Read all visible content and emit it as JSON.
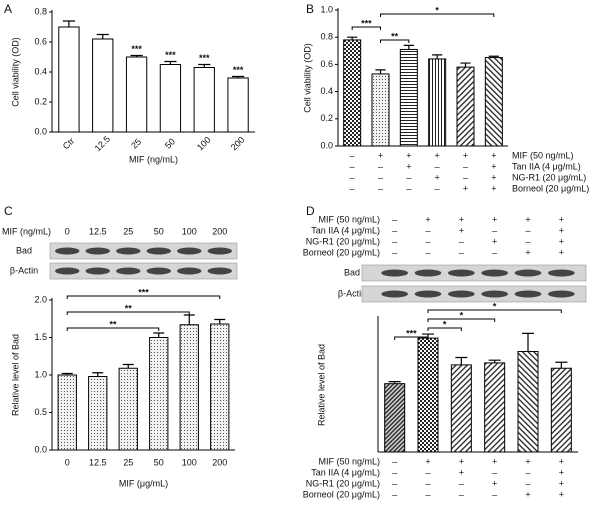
{
  "chart_data": [
    {
      "type": "bar",
      "panel": "A",
      "ylabel": "Cell viability (OD)",
      "xlabel": "MIF (ng/mL)",
      "categories": [
        "Ctr",
        "12.5",
        "25",
        "50",
        "100",
        "200"
      ],
      "values": [
        0.7,
        0.62,
        0.5,
        0.45,
        0.43,
        0.36
      ],
      "errors": [
        0.04,
        0.03,
        0.01,
        0.02,
        0.02,
        0.01
      ],
      "bar_labels": [
        null,
        null,
        "***",
        "***",
        "***",
        "***"
      ],
      "color": "#ffffff",
      "ylim": [
        0,
        0.8
      ],
      "yticks": [
        {
          "value": 0,
          "label": "0.0"
        },
        0.2,
        0.4,
        0.6,
        0.8
      ]
    },
    {
      "type": "bar",
      "panel": "B",
      "ylabel": "Cell viability (OD)",
      "values": [
        0.78,
        0.53,
        0.71,
        0.64,
        0.58,
        0.65
      ],
      "errors": [
        0.02,
        0.03,
        0.03,
        0.03,
        0.03,
        0.01
      ],
      "fills": [
        "checker",
        "dots",
        "hlines",
        "vlines",
        "diag",
        "diag2"
      ],
      "comparisons": [
        {
          "bars": [
            1,
            5
          ],
          "label": "*"
        },
        {
          "bars": [
            0,
            1
          ],
          "label": "***"
        },
        {
          "bars": [
            1,
            2
          ],
          "label": "**"
        }
      ],
      "conditions": [
        {
          "label": "MIF (50 ng/mL)",
          "signs": [
            "–",
            "+",
            "+",
            "+",
            "+",
            "+"
          ]
        },
        {
          "label": "Tan IIA (4 μg/mL)",
          "signs": [
            "–",
            "–",
            "+",
            "–",
            "–",
            "+"
          ]
        },
        {
          "label": "NG-R1 (20 μg/mL)",
          "signs": [
            "–",
            "–",
            "–",
            "+",
            "–",
            "+"
          ]
        },
        {
          "label": "Borneol (20 μg/mL)",
          "signs": [
            "–",
            "–",
            "–",
            "–",
            "+",
            "+"
          ]
        }
      ],
      "ylim": [
        0,
        1.0
      ],
      "yticks": [
        {
          "value": 0,
          "label": "0.0"
        },
        0.2,
        0.4,
        0.6,
        0.8,
        {
          "value": 1.0,
          "label": "1.0"
        }
      ]
    },
    {
      "type": "bar",
      "panel": "C",
      "ylabel": "Relative level of Bad",
      "xlabel": "MIF (μg/mL)",
      "blot": {
        "header": "MIF (ng/mL)",
        "rows": [
          "Bad",
          "β-Actin"
        ]
      },
      "categories": [
        "0",
        "12.5",
        "25",
        "50",
        "100",
        "200"
      ],
      "values": [
        1.0,
        0.98,
        1.09,
        1.5,
        1.67,
        1.68
      ],
      "errors": [
        0.02,
        0.05,
        0.05,
        0.06,
        0.13,
        0.06
      ],
      "pattern": "dots",
      "comparisons": [
        {
          "bars": [
            0,
            5
          ],
          "label": "***"
        },
        {
          "bars": [
            0,
            4
          ],
          "label": "**"
        },
        {
          "bars": [
            0,
            3
          ],
          "label": "**"
        }
      ],
      "ylim": [
        0,
        2.0
      ],
      "yticks": [
        {
          "value": 0,
          "label": "0.0"
        },
        0.5,
        {
          "value": 1.0,
          "label": "1.0"
        },
        1.5,
        {
          "value": 2.0,
          "label": "2.0"
        }
      ]
    },
    {
      "type": "bar",
      "panel": "D",
      "ylabel": "Relative level of Bad",
      "blot": {
        "rows": [
          "Bad",
          "β-Actin"
        ]
      },
      "values": [
        1.02,
        1.7,
        1.3,
        1.33,
        1.5,
        1.25
      ],
      "errors": [
        0.03,
        0.06,
        0.11,
        0.04,
        0.27,
        0.09
      ],
      "fills": [
        "diagdense",
        "checker",
        "diag",
        "diag",
        "diag2",
        "diag"
      ],
      "comparisons": [
        {
          "bars": [
            1,
            5
          ],
          "label": "*"
        },
        {
          "bars": [
            1,
            3
          ],
          "label": "*"
        },
        {
          "bars": [
            1,
            2
          ],
          "label": "*"
        },
        {
          "bars": [
            0,
            1
          ],
          "label": "***"
        }
      ],
      "conditions": [
        {
          "label": "MIF (50 ng/mL)",
          "signs": [
            "–",
            "+",
            "+",
            "+",
            "+",
            "+"
          ]
        },
        {
          "label": "Tan IIA (4 μg/mL)",
          "signs": [
            "–",
            "–",
            "+",
            "–",
            "–",
            "+"
          ]
        },
        {
          "label": "NG-R1 (20 μg/mL)",
          "signs": [
            "–",
            "–",
            "–",
            "+",
            "–",
            "+"
          ]
        },
        {
          "label": "Borneol (20 μg/mL)",
          "signs": [
            "–",
            "–",
            "–",
            "–",
            "+",
            "+"
          ]
        }
      ],
      "ylim": [
        0,
        2.0
      ]
    }
  ]
}
